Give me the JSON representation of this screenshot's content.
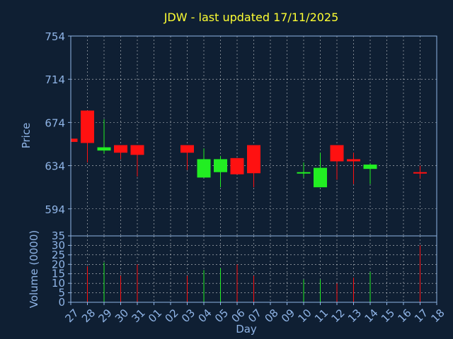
{
  "chart_data": [
    {
      "type": "candlestick",
      "title": "JDW - last updated 17/11/2025",
      "ylabel": "Price",
      "ylim": [
        569,
        754
      ],
      "yticks": [
        594,
        634,
        674,
        714,
        754
      ],
      "grid": true,
      "categories": [
        "27",
        "28",
        "29",
        "30",
        "31",
        "01",
        "02",
        "03",
        "04",
        "05",
        "06",
        "07",
        "08",
        "09",
        "10",
        "11",
        "12",
        "13",
        "14",
        "15",
        "16",
        "17",
        "18"
      ],
      "candles": [
        {
          "day": "27",
          "open": 659,
          "close": 656,
          "high": 659,
          "low": 656,
          "color": "down"
        },
        {
          "day": "28",
          "open": 685,
          "close": 655,
          "high": 685,
          "low": 637,
          "color": "down"
        },
        {
          "day": "29",
          "open": 648,
          "close": 651,
          "high": 677,
          "low": 645,
          "color": "up"
        },
        {
          "day": "30",
          "open": 653,
          "close": 646,
          "high": 653,
          "low": 640,
          "color": "down"
        },
        {
          "day": "31",
          "open": 653,
          "close": 644,
          "high": 653,
          "low": 624,
          "color": "down"
        },
        {
          "day": "03",
          "open": 653,
          "close": 646,
          "high": 653,
          "low": 630,
          "color": "down"
        },
        {
          "day": "04",
          "open": 623,
          "close": 640,
          "high": 650,
          "low": 623,
          "color": "up"
        },
        {
          "day": "05",
          "open": 628,
          "close": 640,
          "high": 643,
          "low": 614,
          "color": "up"
        },
        {
          "day": "06",
          "open": 641,
          "close": 626,
          "high": 641,
          "low": 626,
          "color": "down"
        },
        {
          "day": "07",
          "open": 653,
          "close": 627,
          "high": 653,
          "low": 614,
          "color": "down"
        },
        {
          "day": "10",
          "open": 627,
          "close": 628,
          "high": 637,
          "low": 623,
          "color": "up"
        },
        {
          "day": "11",
          "open": 614,
          "close": 632,
          "high": 646,
          "low": 614,
          "color": "up"
        },
        {
          "day": "12",
          "open": 653,
          "close": 638,
          "high": 653,
          "low": 621,
          "color": "down"
        },
        {
          "day": "13",
          "open": 640,
          "close": 638,
          "high": 646,
          "low": 617,
          "color": "down"
        },
        {
          "day": "14",
          "open": 631,
          "close": 635,
          "high": 636,
          "low": 617,
          "color": "up"
        },
        {
          "day": "17",
          "open": 628,
          "close": 627,
          "high": 634,
          "low": 622,
          "color": "down"
        }
      ]
    },
    {
      "type": "bar",
      "ylabel": "Volume (0000)",
      "xlabel": "Day",
      "ylim": [
        0,
        35
      ],
      "yticks": [
        0,
        5,
        10,
        15,
        20,
        25,
        30,
        35
      ],
      "grid": true,
      "categories": [
        "27",
        "28",
        "29",
        "30",
        "31",
        "01",
        "02",
        "03",
        "04",
        "05",
        "06",
        "07",
        "08",
        "09",
        "10",
        "11",
        "12",
        "13",
        "14",
        "15",
        "16",
        "17",
        "18"
      ],
      "bars": [
        {
          "day": "28",
          "value": 19,
          "color": "down"
        },
        {
          "day": "29",
          "value": 21,
          "color": "up"
        },
        {
          "day": "30",
          "value": 14,
          "color": "down"
        },
        {
          "day": "31",
          "value": 20,
          "color": "down"
        },
        {
          "day": "03",
          "value": 14,
          "color": "down"
        },
        {
          "day": "04",
          "value": 17,
          "color": "up"
        },
        {
          "day": "05",
          "value": 18,
          "color": "up"
        },
        {
          "day": "06",
          "value": 20,
          "color": "down"
        },
        {
          "day": "07",
          "value": 14,
          "color": "down"
        },
        {
          "day": "10",
          "value": 12,
          "color": "up"
        },
        {
          "day": "11",
          "value": 12,
          "color": "up"
        },
        {
          "day": "12",
          "value": 10,
          "color": "down"
        },
        {
          "day": "13",
          "value": 13,
          "color": "down"
        },
        {
          "day": "14",
          "value": 16,
          "color": "up"
        },
        {
          "day": "17",
          "value": 30,
          "color": "down"
        }
      ]
    }
  ],
  "colors": {
    "background": "#0f1f33",
    "axis": "#8fb4e6",
    "title": "#ffff33",
    "up": "#22ee22",
    "down": "#ff1111",
    "grid": "#ffffff"
  }
}
